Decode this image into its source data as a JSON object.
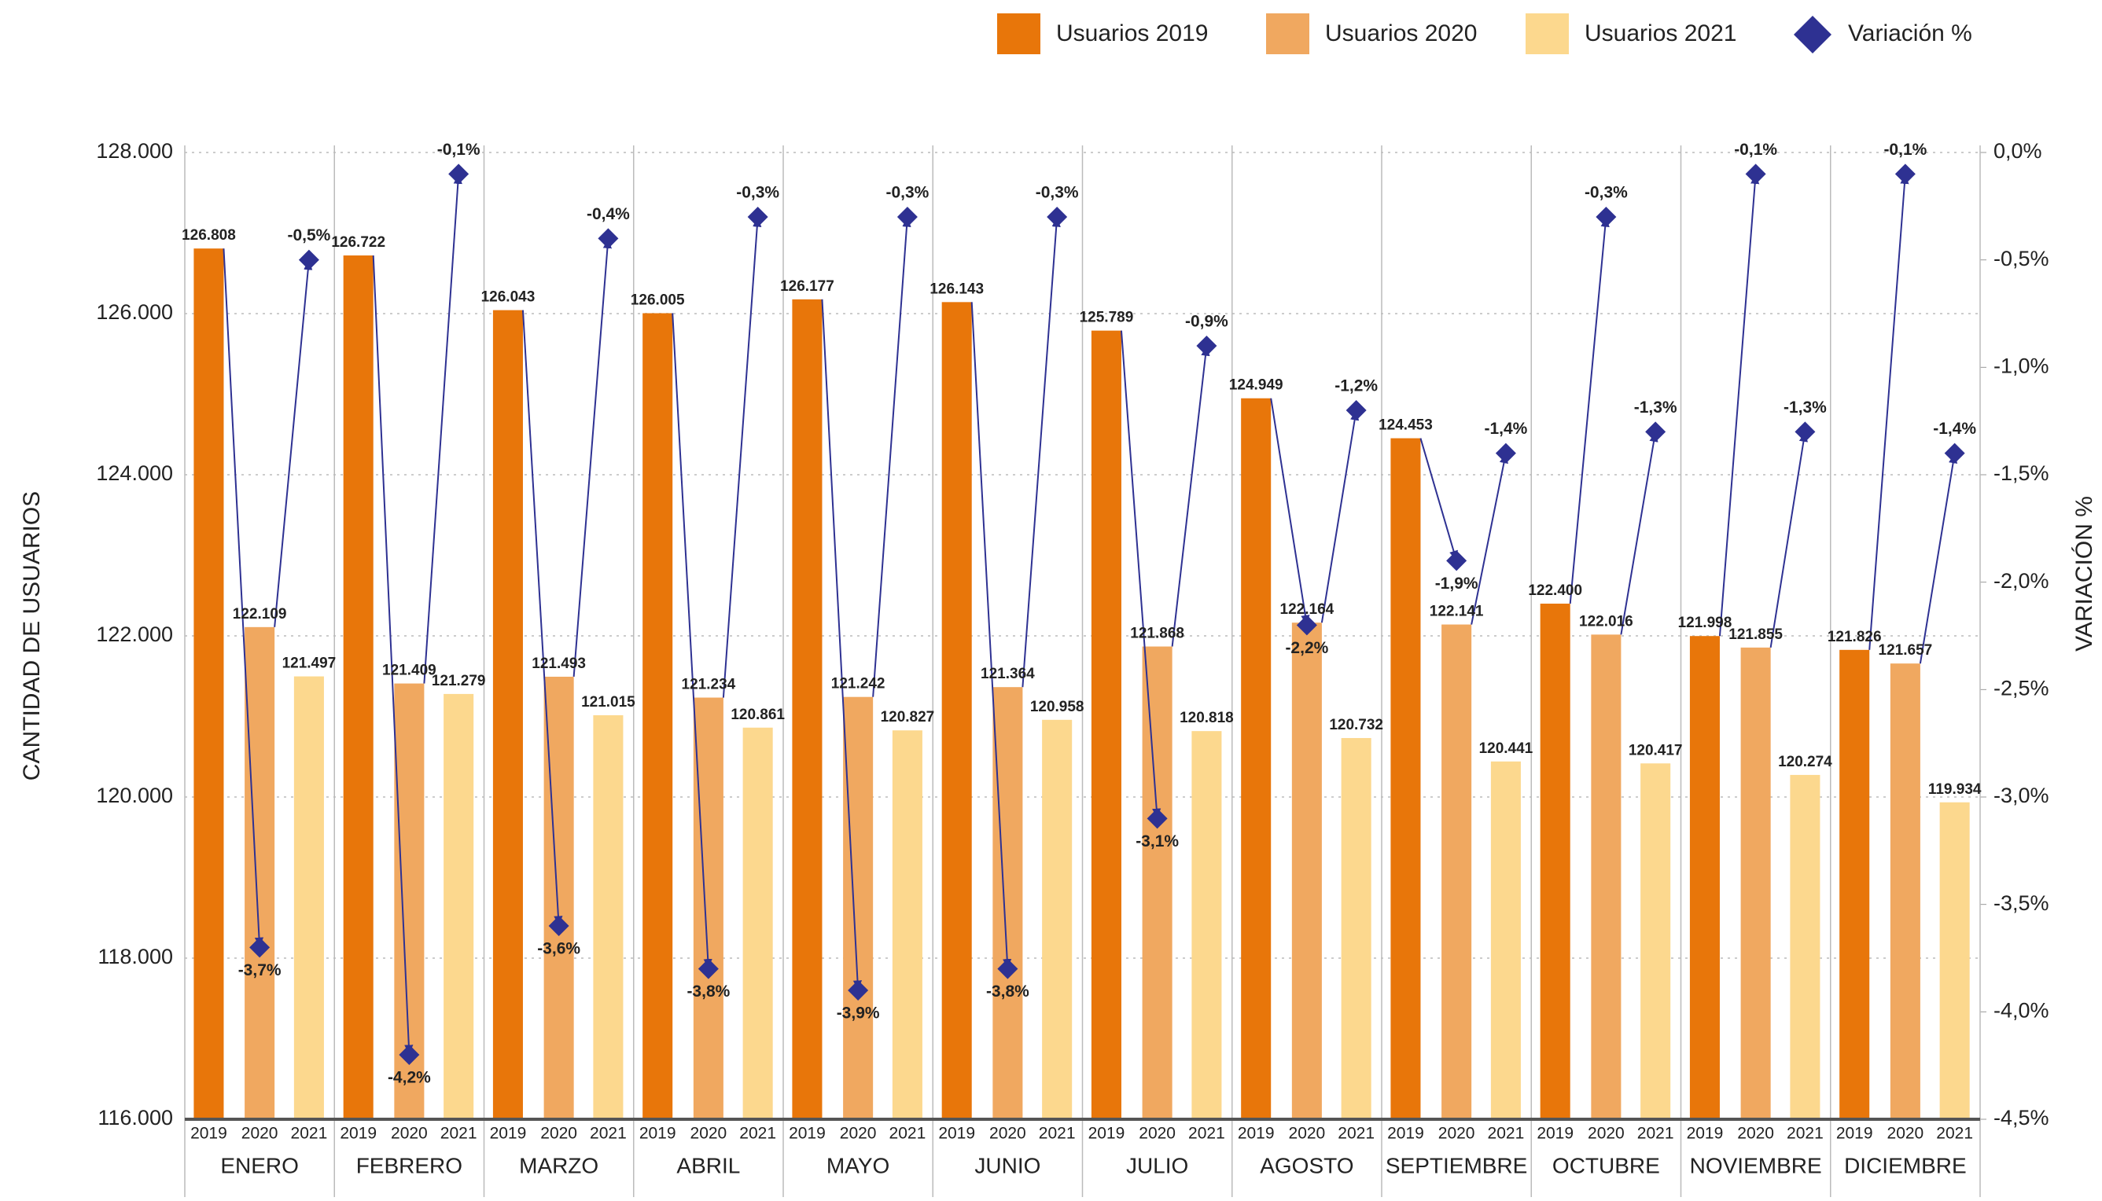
{
  "chart_data": {
    "type": "bar",
    "categories": [
      "ENERO",
      "FEBRERO",
      "MARZO",
      "ABRIL",
      "MAYO",
      "JUNIO",
      "JULIO",
      "AGOSTO",
      "SEPTIEMBRE",
      "OCTUBRE",
      "NOVIEMBRE",
      "DICIEMBRE"
    ],
    "subcategories": [
      "2019",
      "2020",
      "2021"
    ],
    "ylabel": "CANTIDAD DE USUARIOS",
    "y2label": "VARIACIÓN %",
    "ylim": [
      116000,
      128000
    ],
    "yticks": [
      {
        "value": 116000,
        "label": "116.000"
      },
      {
        "value": 118000,
        "label": "118.000"
      },
      {
        "value": 120000,
        "label": "120.000"
      },
      {
        "value": 122000,
        "label": "122.000"
      },
      {
        "value": 124000,
        "label": "124.000"
      },
      {
        "value": 126000,
        "label": "126.000"
      },
      {
        "value": 128000,
        "label": "128.000"
      }
    ],
    "y2lim": [
      -4.5,
      0
    ],
    "y2ticks": [
      {
        "value": -4.5,
        "label": "-4,5%"
      },
      {
        "value": -4,
        "label": "-4,0%"
      },
      {
        "value": -3.5,
        "label": "-3,5%"
      },
      {
        "value": -3,
        "label": "-3,0%"
      },
      {
        "value": -2.5,
        "label": "-2,5%"
      },
      {
        "value": -2,
        "label": "-2,0%"
      },
      {
        "value": -1.5,
        "label": "-1,5%"
      },
      {
        "value": -1,
        "label": "-1,0%"
      },
      {
        "value": -0.5,
        "label": "-0,5%"
      },
      {
        "value": 0,
        "label": "0,0%"
      }
    ],
    "grid": true,
    "series": [
      {
        "name": "Usuarios 2019",
        "color": "#e8760a",
        "values": [
          126808,
          126722,
          126043,
          126005,
          126177,
          126143,
          125789,
          124949,
          124453,
          122400,
          121998,
          121826
        ],
        "value_labels": [
          "126.808",
          "126.722",
          "126.043",
          "126.005",
          "126.177",
          "126.143",
          "125.789",
          "124.949",
          "124.453",
          "122.400",
          "121.998",
          "121.826"
        ]
      },
      {
        "name": "Usuarios 2020",
        "color": "#f0a860",
        "values": [
          122109,
          121409,
          121493,
          121234,
          121242,
          121364,
          121868,
          122164,
          122141,
          122016,
          121855,
          121657
        ],
        "value_labels": [
          "122.109",
          "121.409",
          "121.493",
          "121.234",
          "121.242",
          "121.364",
          "121.868",
          "122.164",
          "122.141",
          "122.016",
          "121.855",
          "121.657"
        ]
      },
      {
        "name": "Usuarios 2021",
        "color": "#fcd88e",
        "values": [
          121497,
          121279,
          121015,
          120861,
          120827,
          120958,
          120818,
          120732,
          120441,
          120417,
          120274,
          119934
        ],
        "value_labels": [
          "121.497",
          "121.279",
          "121.015",
          "120.861",
          "120.827",
          "120.958",
          "120.818",
          "120.732",
          "120.441",
          "120.417",
          "120.274",
          "119.934"
        ]
      }
    ],
    "variation": {
      "name": "Variación %",
      "color": "#2e3192",
      "axis": "y2",
      "values": [
        [
          -3.7,
          -0.5
        ],
        [
          -4.2,
          -0.1
        ],
        [
          -3.6,
          -0.4
        ],
        [
          -3.8,
          -0.3
        ],
        [
          -3.9,
          -0.3
        ],
        [
          -3.8,
          -0.3
        ],
        [
          -3.1,
          -0.9
        ],
        [
          -2.2,
          -1.2
        ],
        [
          -1.9,
          -1.4
        ],
        [
          -0.3,
          -1.3
        ],
        [
          -0.1,
          -1.3
        ],
        [
          -0.1,
          -1.4
        ]
      ],
      "value_labels": [
        [
          "-3,7%",
          "-0,5%"
        ],
        [
          "-4,2%",
          "-0,1%"
        ],
        [
          "-3,6%",
          "-0,4%"
        ],
        [
          "-3,8%",
          "-0,3%"
        ],
        [
          "-3,9%",
          "-0,3%"
        ],
        [
          "-3,8%",
          "-0,3%"
        ],
        [
          "-3,1%",
          "-0,9%"
        ],
        [
          "-2,2%",
          "-1,2%"
        ],
        [
          "-1,9%",
          "-1,4%"
        ],
        [
          "-0,3%",
          "-1,3%"
        ],
        [
          "-0,1%",
          "-1,3%"
        ],
        [
          "-0,1%",
          "-1,4%"
        ]
      ]
    }
  }
}
